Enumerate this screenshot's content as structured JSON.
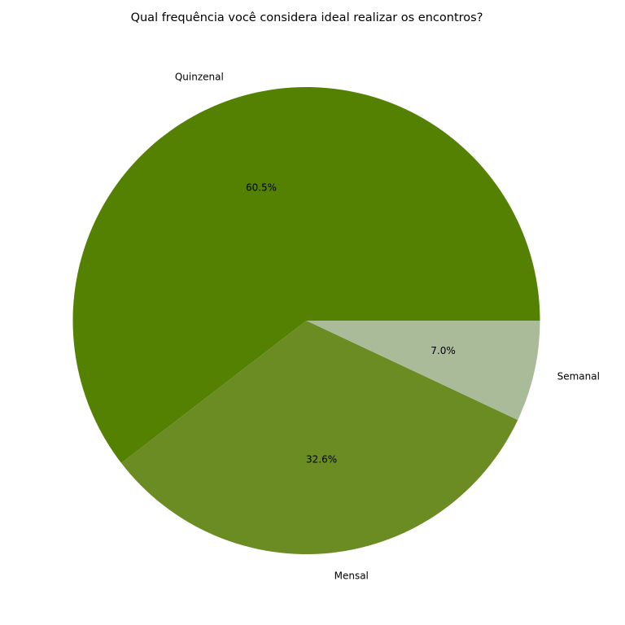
{
  "chart_data": {
    "type": "pie",
    "title": "Qual frequência você considera ideal realizar os encontros?",
    "categories": [
      "Quinzenal",
      "Mensal",
      "Semanal"
    ],
    "values": [
      60.5,
      32.6,
      7.0
    ],
    "value_labels": [
      "60.5%",
      "32.6%",
      "7.0%"
    ],
    "colors": [
      "#548102",
      "#6a8c22",
      "#aabb9a"
    ],
    "start_angle_deg": 0,
    "direction": "counterclockwise",
    "legend": "none"
  }
}
